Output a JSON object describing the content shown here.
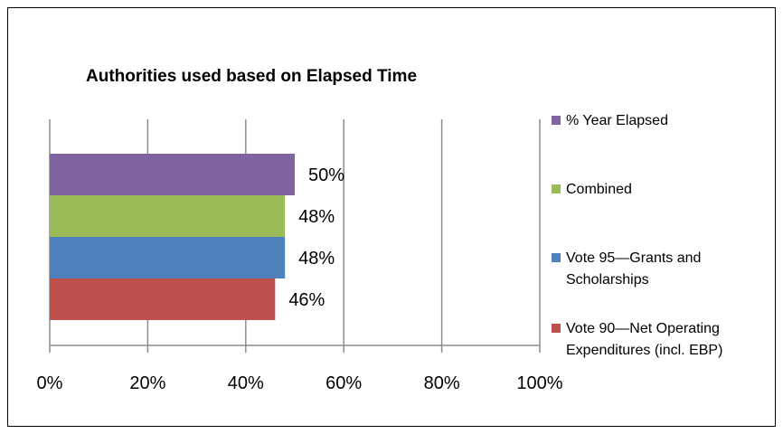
{
  "chart_data": {
    "type": "bar",
    "orientation": "horizontal",
    "title": "Authorities used based on Elapsed Time",
    "xlabel": "",
    "ylabel": "",
    "xlim": [
      0,
      100
    ],
    "x_ticks": [
      "0%",
      "20%",
      "40%",
      "60%",
      "80%",
      "100%"
    ],
    "grid": true,
    "legend_position": "right",
    "series": [
      {
        "name": "% Year Elapsed",
        "value": 50,
        "label": "50%",
        "color": "#8064A2"
      },
      {
        "name": "Combined",
        "value": 48,
        "label": "48%",
        "color": "#9BBB59"
      },
      {
        "name": "Vote 95—Grants and Scholarships",
        "value": 48,
        "label": "48%",
        "color": "#4F81BD"
      },
      {
        "name": "Vote 90—Net Operating Expenditures (incl. EBP)",
        "value": 46,
        "label": "46%",
        "color": "#C0504D"
      }
    ],
    "legend_lines": [
      [
        "% Year Elapsed"
      ],
      [
        "Combined"
      ],
      [
        "Vote 95—Grants and",
        "Scholarships"
      ],
      [
        "Vote 90—Net Operating",
        "Expenditures (incl. EBP)"
      ]
    ]
  }
}
